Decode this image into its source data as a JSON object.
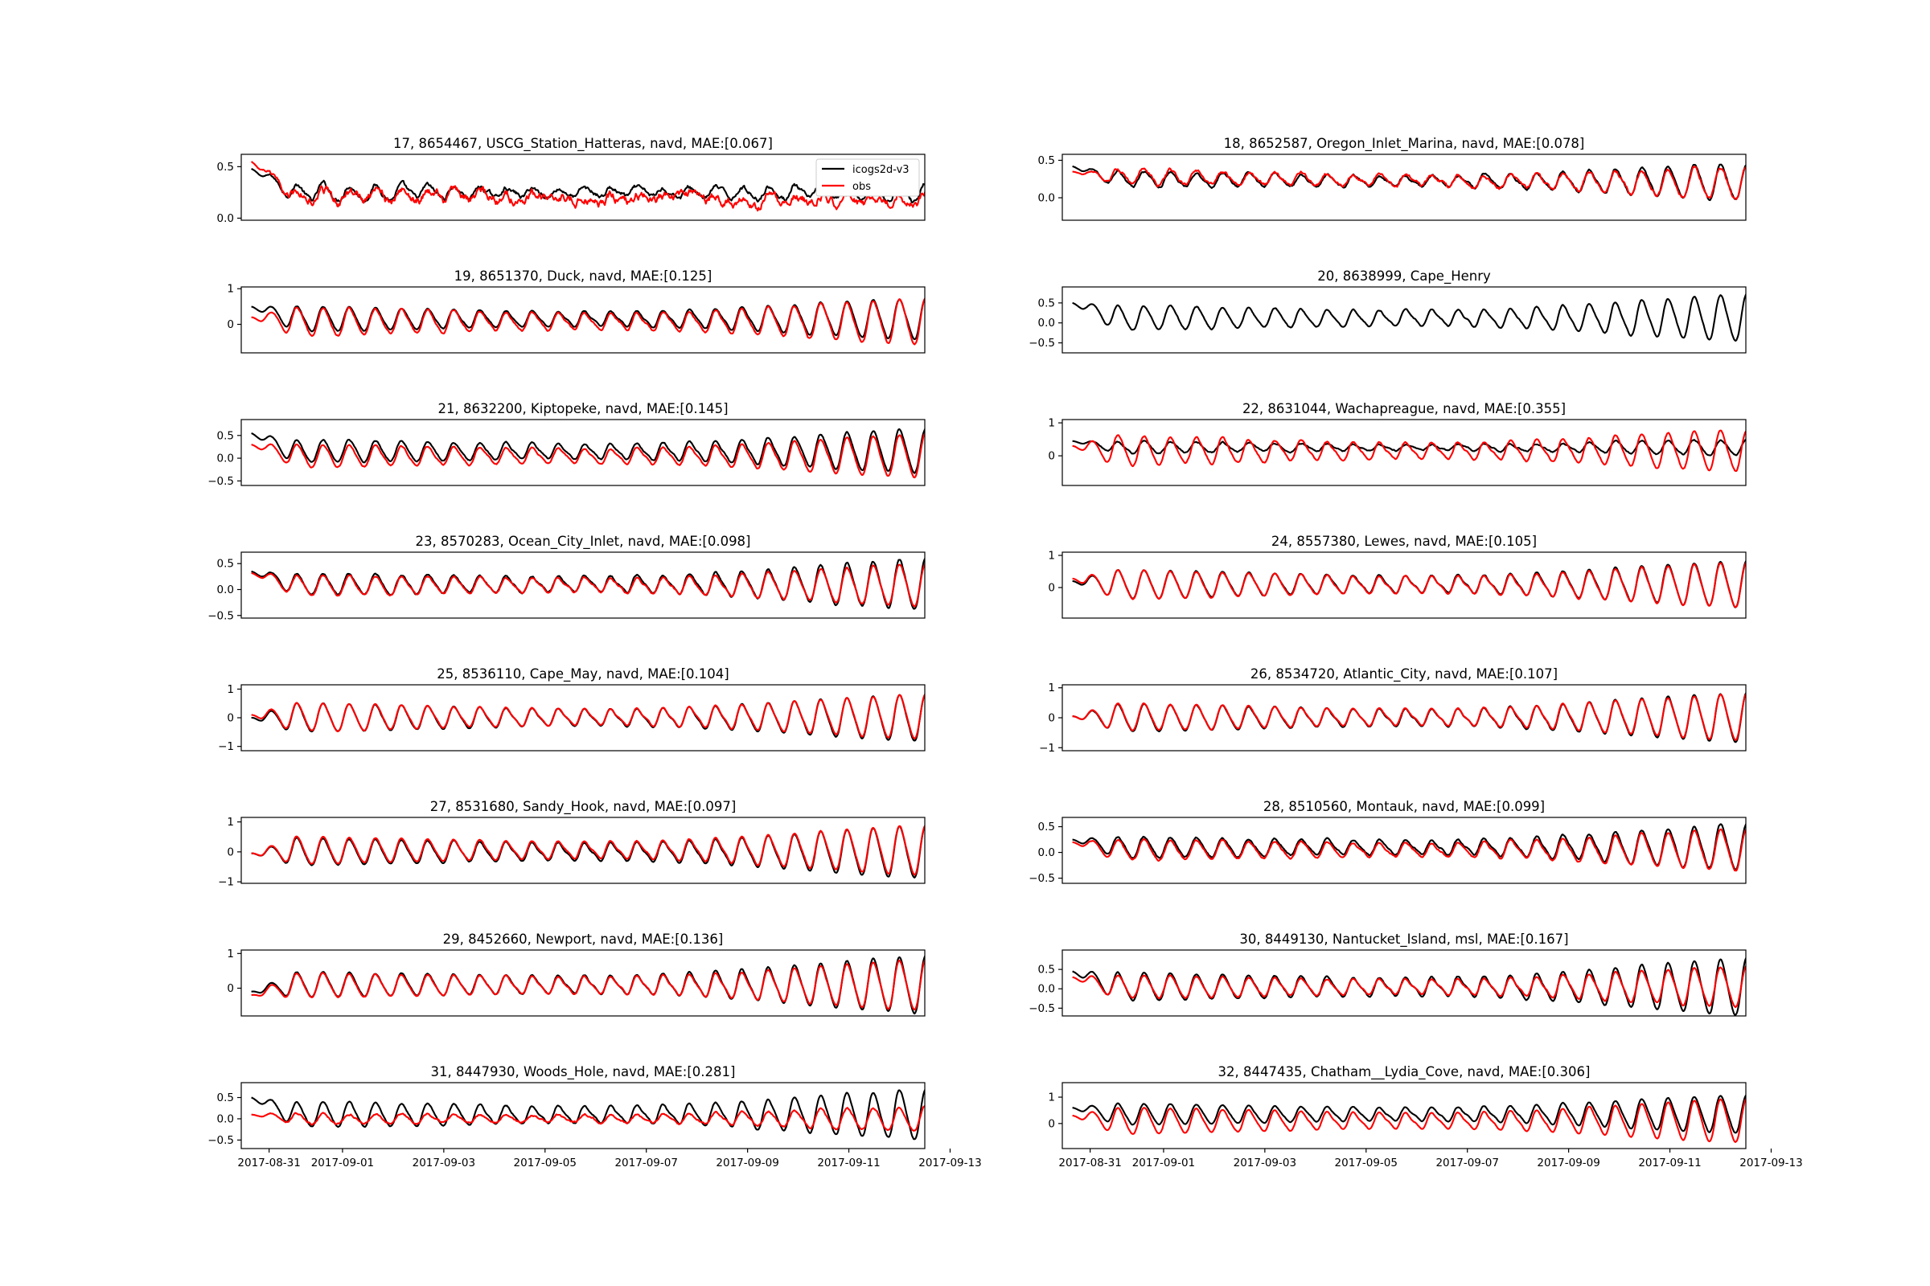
{
  "figure": {
    "legend": {
      "model_label": "icogs2d-v3",
      "obs_label": "obs"
    },
    "colors": {
      "model": "#000000",
      "obs": "#ff0000"
    }
  },
  "chart_data": [
    {
      "type": "line",
      "title": "17, 8654467, USCG_Station_Hatteras, navd, MAE:[0.067]",
      "ylim": [
        -0.02,
        0.62
      ],
      "yticks": [
        0.0,
        0.5
      ],
      "ytick_labels": [
        "0.0",
        "0.5"
      ],
      "has_obs": true,
      "model": {
        "base": 0.25,
        "trend": 0.0,
        "amp": 0.08,
        "amp_end": 0.1,
        "noise": 0.03
      },
      "obs": {
        "base": 0.22,
        "trend": -0.04,
        "amp": 0.06,
        "amp_end": 0.06,
        "noise": 0.06
      },
      "start": {
        "model": 0.48,
        "obs": 0.55
      }
    },
    {
      "type": "line",
      "title": "18, 8652587, Oregon_Inlet_Marina, navd, MAE:[0.078]",
      "ylim": [
        -0.3,
        0.58
      ],
      "yticks": [
        0.0,
        0.5
      ],
      "ytick_labels": [
        "0.0",
        "0.5"
      ],
      "has_obs": true,
      "model": {
        "base": 0.25,
        "trend": -0.05,
        "amp": 0.1,
        "amp_end": 0.25,
        "noise": 0.02
      },
      "obs": {
        "base": 0.28,
        "trend": -0.1,
        "amp": 0.1,
        "amp_end": 0.22,
        "noise": 0.03
      },
      "start": {
        "model": 0.42,
        "obs": 0.35
      }
    },
    {
      "type": "line",
      "title": "19, 8651370, Duck, navd, MAE:[0.125]",
      "ylim": [
        -0.8,
        1.05
      ],
      "yticks": [
        0,
        1
      ],
      "ytick_labels": [
        "0",
        "1"
      ],
      "has_obs": true,
      "model": {
        "base": 0.15,
        "trend": 0.0,
        "amp": 0.35,
        "amp_end": 0.6,
        "noise": 0.02
      },
      "obs": {
        "base": 0.08,
        "trend": 0.0,
        "amp": 0.4,
        "amp_end": 0.65,
        "noise": 0.03
      },
      "start": {
        "model": 0.5,
        "obs": 0.2
      }
    },
    {
      "type": "line",
      "title": "20, 8638999, Cape_Henry",
      "ylim": [
        -0.75,
        0.9
      ],
      "yticks": [
        -0.5,
        0.0,
        0.5
      ],
      "ytick_labels": [
        "−0.5",
        "0.0",
        "0.5"
      ],
      "has_obs": false,
      "model": {
        "base": 0.12,
        "trend": 0.0,
        "amp": 0.3,
        "amp_end": 0.6,
        "noise": 0.02
      },
      "start": {
        "model": 0.5
      }
    },
    {
      "type": "line",
      "title": "21, 8632200, Kiptopeke, navd, MAE:[0.145]",
      "ylim": [
        -0.6,
        0.85
      ],
      "yticks": [
        -0.5,
        0.0,
        0.5
      ],
      "ytick_labels": [
        "−0.5",
        "0.0",
        "0.5"
      ],
      "has_obs": true,
      "model": {
        "base": 0.15,
        "trend": 0.0,
        "amp": 0.25,
        "amp_end": 0.5,
        "noise": 0.02
      },
      "obs": {
        "base": 0.05,
        "trend": 0.0,
        "amp": 0.25,
        "amp_end": 0.5,
        "noise": 0.02
      },
      "start": {
        "model": 0.55,
        "obs": 0.3
      }
    },
    {
      "type": "line",
      "title": "22, 8631044, Wachapreague, navd, MAE:[0.355]",
      "ylim": [
        -0.9,
        1.1
      ],
      "yticks": [
        0,
        1
      ],
      "ytick_labels": [
        "0",
        "1"
      ],
      "has_obs": true,
      "model": {
        "base": 0.25,
        "trend": 0.0,
        "amp": 0.18,
        "amp_end": 0.25,
        "noise": 0.03
      },
      "obs": {
        "base": 0.15,
        "trend": 0.0,
        "amp": 0.45,
        "amp_end": 0.65,
        "noise": 0.03
      },
      "start": {
        "model": 0.45,
        "obs": 0.3
      }
    },
    {
      "type": "line",
      "title": "23, 8570283, Ocean_City_Inlet, navd, MAE:[0.098]",
      "ylim": [
        -0.55,
        0.72
      ],
      "yticks": [
        -0.5,
        0.0,
        0.5
      ],
      "ytick_labels": [
        "−0.5",
        "0.0",
        "0.5"
      ],
      "has_obs": true,
      "model": {
        "base": 0.1,
        "trend": 0.0,
        "amp": 0.2,
        "amp_end": 0.5,
        "noise": 0.02
      },
      "obs": {
        "base": 0.08,
        "trend": 0.0,
        "amp": 0.2,
        "amp_end": 0.42,
        "noise": 0.02
      },
      "start": {
        "model": 0.35,
        "obs": 0.32
      }
    },
    {
      "type": "line",
      "title": "24, 8557380, Lewes, navd, MAE:[0.105]",
      "ylim": [
        -0.95,
        1.1
      ],
      "yticks": [
        0,
        1
      ],
      "ytick_labels": [
        "0",
        "1"
      ],
      "has_obs": true,
      "model": {
        "base": 0.1,
        "trend": 0.0,
        "amp": 0.45,
        "amp_end": 0.75,
        "noise": 0.02
      },
      "obs": {
        "base": 0.08,
        "trend": 0.0,
        "amp": 0.45,
        "amp_end": 0.72,
        "noise": 0.02
      },
      "start": {
        "model": 0.2,
        "obs": 0.28
      }
    },
    {
      "type": "line",
      "title": "25, 8536110, Cape_May, navd, MAE:[0.104]",
      "ylim": [
        -1.15,
        1.15
      ],
      "yticks": [
        -1,
        0,
        1
      ],
      "ytick_labels": [
        "−1",
        "0",
        "1"
      ],
      "has_obs": true,
      "model": {
        "base": 0.0,
        "trend": 0.0,
        "amp": 0.5,
        "amp_end": 0.85,
        "noise": 0.02
      },
      "obs": {
        "base": 0.02,
        "trend": 0.0,
        "amp": 0.5,
        "amp_end": 0.8,
        "noise": 0.02
      },
      "start": {
        "model": 0.0,
        "obs": 0.1
      }
    },
    {
      "type": "line",
      "title": "26, 8534720, Atlantic_City, navd, MAE:[0.107]",
      "ylim": [
        -1.1,
        1.1
      ],
      "yticks": [
        -1,
        0,
        1
      ],
      "ytick_labels": [
        "−1",
        "0",
        "1"
      ],
      "has_obs": true,
      "model": {
        "base": 0.0,
        "trend": 0.0,
        "amp": 0.45,
        "amp_end": 0.85,
        "noise": 0.02
      },
      "obs": {
        "base": 0.02,
        "trend": 0.0,
        "amp": 0.45,
        "amp_end": 0.8,
        "noise": 0.02
      },
      "start": {
        "model": 0.05,
        "obs": 0.05
      }
    },
    {
      "type": "line",
      "title": "27, 8531680, Sandy_Hook, navd, MAE:[0.097]",
      "ylim": [
        -1.05,
        1.15
      ],
      "yticks": [
        -1,
        0,
        1
      ],
      "ytick_labels": [
        "−1",
        "0",
        "1"
      ],
      "has_obs": true,
      "model": {
        "base": 0.0,
        "trend": 0.0,
        "amp": 0.45,
        "amp_end": 0.9,
        "noise": 0.02
      },
      "obs": {
        "base": 0.05,
        "trend": 0.0,
        "amp": 0.45,
        "amp_end": 0.85,
        "noise": 0.02
      },
      "start": {
        "model": -0.05,
        "obs": -0.05
      }
    },
    {
      "type": "line",
      "title": "28, 8510560, Montauk, navd, MAE:[0.099]",
      "ylim": [
        -0.6,
        0.68
      ],
      "yticks": [
        -0.5,
        0.0,
        0.5
      ],
      "ytick_labels": [
        "−0.5",
        "0.0",
        "0.5"
      ],
      "has_obs": true,
      "model": {
        "base": 0.1,
        "trend": 0.0,
        "amp": 0.2,
        "amp_end": 0.45,
        "noise": 0.02
      },
      "obs": {
        "base": 0.05,
        "trend": 0.0,
        "amp": 0.2,
        "amp_end": 0.42,
        "noise": 0.02
      },
      "start": {
        "model": 0.25,
        "obs": 0.2
      }
    },
    {
      "type": "line",
      "title": "29, 8452660, Newport, navd, MAE:[0.136]",
      "ylim": [
        -0.8,
        1.1
      ],
      "yticks": [
        0,
        1
      ],
      "ytick_labels": [
        "0",
        "1"
      ],
      "has_obs": true,
      "model": {
        "base": 0.1,
        "trend": 0.0,
        "amp": 0.35,
        "amp_end": 0.85,
        "noise": 0.02
      },
      "obs": {
        "base": 0.08,
        "trend": 0.0,
        "amp": 0.35,
        "amp_end": 0.75,
        "noise": 0.02
      },
      "start": {
        "model": -0.1,
        "obs": -0.2
      }
    },
    {
      "type": "line",
      "title": "30, 8449130, Nantucket_Island, msl, MAE:[0.167]",
      "ylim": [
        -0.7,
        1.0
      ],
      "yticks": [
        -0.5,
        0.0,
        0.5
      ],
      "ytick_labels": [
        "−0.5",
        "0.0",
        "0.5"
      ],
      "has_obs": true,
      "model": {
        "base": 0.05,
        "trend": 0.0,
        "amp": 0.35,
        "amp_end": 0.75,
        "noise": 0.02
      },
      "obs": {
        "base": 0.05,
        "trend": 0.0,
        "amp": 0.3,
        "amp_end": 0.55,
        "noise": 0.02
      },
      "start": {
        "model": 0.45,
        "obs": 0.3
      }
    },
    {
      "type": "line",
      "title": "31, 8447930, Woods_Hole, navd, MAE:[0.281]",
      "ylim": [
        -0.7,
        0.85
      ],
      "yticks": [
        -0.5,
        0.0,
        0.5
      ],
      "ytick_labels": [
        "−0.5",
        "0.0",
        "0.5"
      ],
      "has_obs": true,
      "model": {
        "base": 0.1,
        "trend": 0.0,
        "amp": 0.3,
        "amp_end": 0.6,
        "noise": 0.02
      },
      "obs": {
        "base": 0.0,
        "trend": 0.0,
        "amp": 0.12,
        "amp_end": 0.3,
        "noise": 0.03
      },
      "start": {
        "model": 0.5,
        "obs": 0.1
      }
    },
    {
      "type": "line",
      "title": "32, 8447435, Chatham__Lydia_Cove, navd, MAE:[0.306]",
      "ylim": [
        -0.95,
        1.55
      ],
      "yticks": [
        0,
        1
      ],
      "ytick_labels": [
        "0",
        "1"
      ],
      "has_obs": true,
      "model": {
        "base": 0.35,
        "trend": 0.0,
        "amp": 0.4,
        "amp_end": 0.75,
        "noise": 0.02
      },
      "obs": {
        "base": 0.1,
        "trend": 0.0,
        "amp": 0.5,
        "amp_end": 0.85,
        "noise": 0.02
      },
      "start": {
        "model": 0.6,
        "obs": 0.3
      }
    }
  ],
  "x_axis": {
    "range_days": [
      0,
      13.5
    ],
    "data_span_days": [
      0.2,
      14.35
    ],
    "ticks_days": [
      0.55,
      2,
      4,
      6,
      8,
      10,
      12,
      14
    ],
    "tick_labels": [
      "2017-08-31",
      "2017-09-01",
      "2017-09-03",
      "2017-09-05",
      "2017-09-07",
      "2017-09-09",
      "2017-09-11",
      "2017-09-13"
    ],
    "origin_date": "2017-08-30"
  }
}
